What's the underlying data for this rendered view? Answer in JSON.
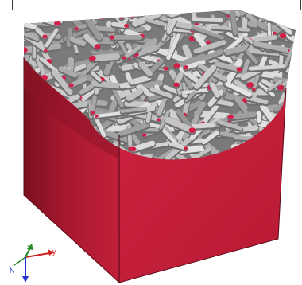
{
  "scene": {
    "colors": {
      "cube_front": "#c41e3a",
      "cube_left": "#b01830",
      "cube_inner_left": "#8e1428",
      "fiber_light": "#c8c8c8",
      "fiber_dark": "#6e6e6e",
      "fiber_cut": "#d0204a"
    }
  },
  "triad": {
    "x_label": "x",
    "y_label": "y",
    "z_label": "N",
    "colors": {
      "x": "#2a8a2a",
      "y": "#cc2222",
      "z": "#2233cc"
    }
  }
}
